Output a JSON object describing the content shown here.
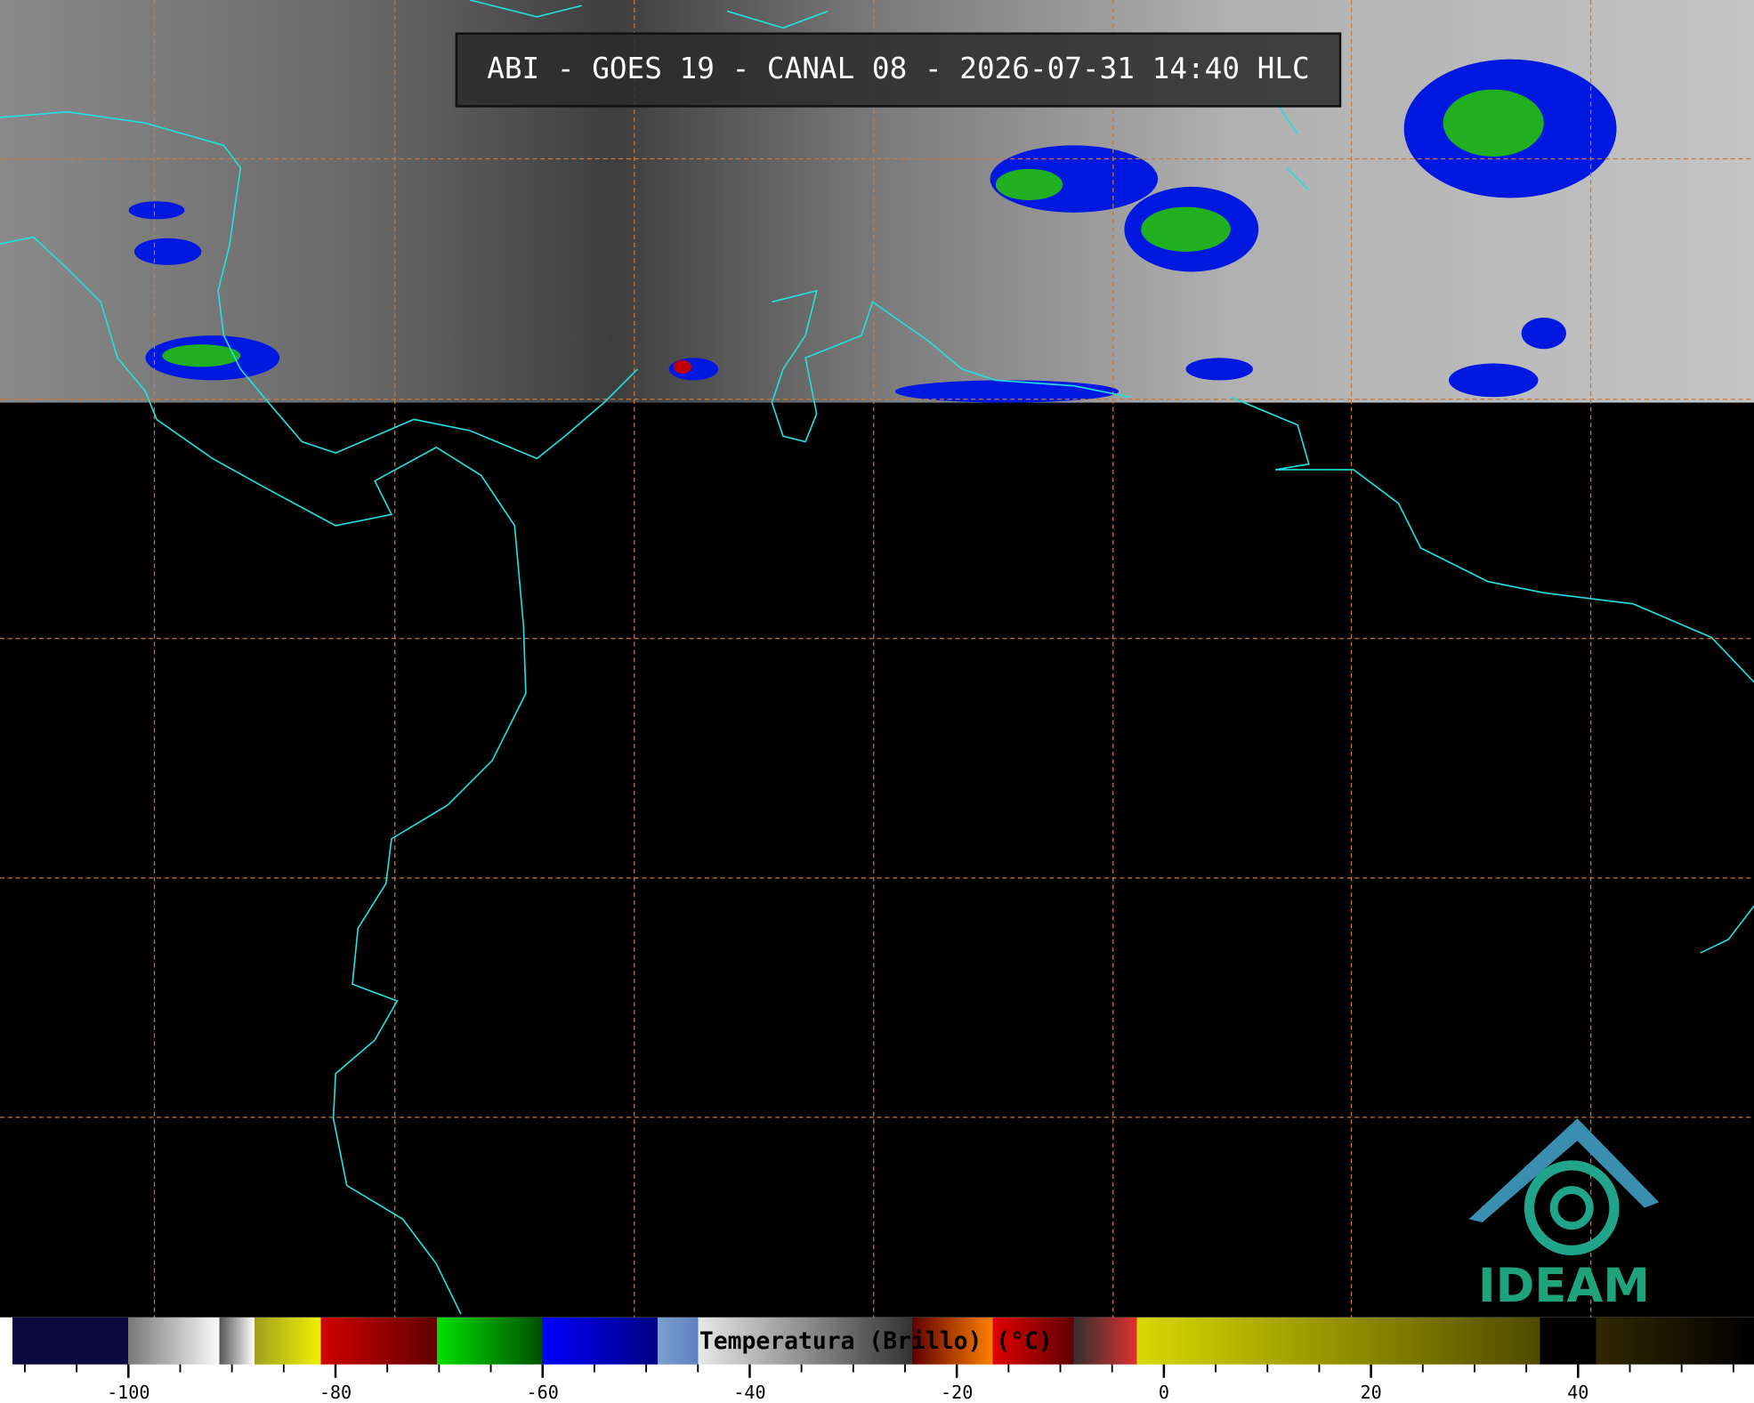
{
  "header": {
    "title": "ABI - GOES 19 - CANAL 08 - 2026-07-31 14:40 HLC"
  },
  "colorbar": {
    "label": "Temperatura (Brillo) (°C)",
    "range": [
      -112.4,
      57.0
    ],
    "ticks": [
      -100,
      -80,
      -60,
      -40,
      -20,
      0,
      20,
      40
    ],
    "minor_ticks": [
      -110,
      -105,
      -95,
      -90,
      -85,
      -75,
      -70,
      -65,
      -55,
      -50,
      -45,
      -35,
      -30,
      -25,
      -15,
      -10,
      -5,
      5,
      10,
      15,
      25,
      30,
      35,
      45,
      50,
      55
    ]
  },
  "logo": {
    "text": "IDEAM"
  }
}
